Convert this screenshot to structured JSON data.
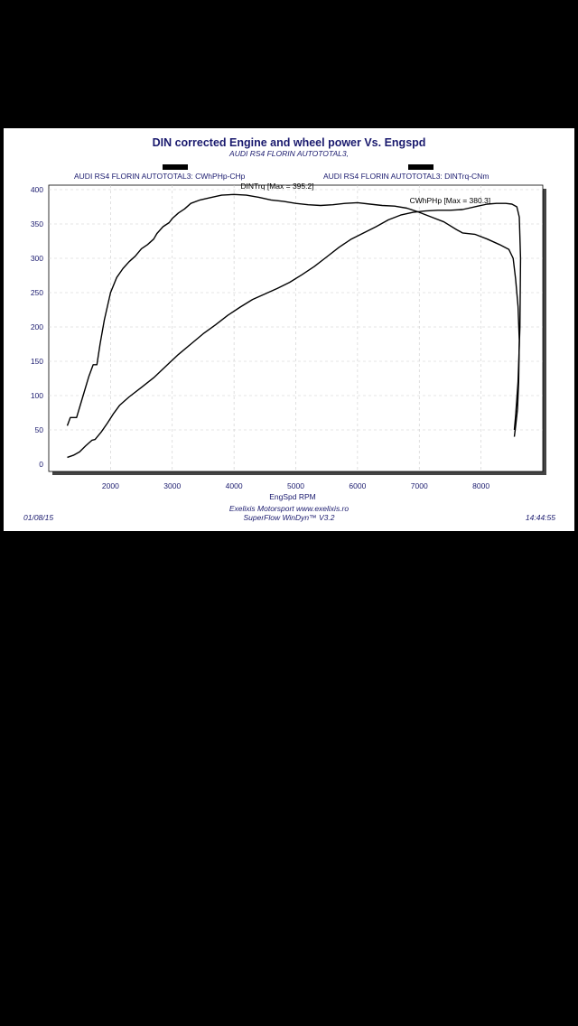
{
  "chart_data": {
    "type": "line",
    "title": "DIN corrected Engine and wheel power Vs. Engspd",
    "subtitle": "AUDI RS4 FLORIN AUTOTOTAL3,",
    "legend": [
      "AUDI RS4 FLORIN AUTOTOTAL3: CWhPHp-CHp",
      "AUDI RS4 FLORIN AUTOTOTAL3: DINTrq-CNm"
    ],
    "xlabel": "EngSpd RPM",
    "ylabel": "",
    "xlim": [
      1000,
      9000
    ],
    "ylim": [
      0,
      400
    ],
    "x_ticks": [
      "2000",
      "3000",
      "4000",
      "5000",
      "6000",
      "7000",
      "8000"
    ],
    "y_ticks": [
      "0",
      "50",
      "100",
      "150",
      "200",
      "250",
      "300",
      "350",
      "400"
    ],
    "grid": true,
    "annotations": [
      {
        "text": "DINTrq [Max = 395.2]",
        "x": 4700,
        "y": 401
      },
      {
        "text": "CWhPHp [Max = 380.3]",
        "x": 7500,
        "y": 380
      }
    ],
    "series": [
      {
        "name": "DINTrq",
        "points": [
          [
            1300,
            56
          ],
          [
            1350,
            68
          ],
          [
            1450,
            68
          ],
          [
            1550,
            98
          ],
          [
            1650,
            128
          ],
          [
            1720,
            145
          ],
          [
            1780,
            145
          ],
          [
            1830,
            175
          ],
          [
            1900,
            210
          ],
          [
            2000,
            250
          ],
          [
            2100,
            272
          ],
          [
            2200,
            285
          ],
          [
            2300,
            295
          ],
          [
            2400,
            303
          ],
          [
            2500,
            314
          ],
          [
            2600,
            320
          ],
          [
            2700,
            328
          ],
          [
            2750,
            336
          ],
          [
            2850,
            346
          ],
          [
            2950,
            352
          ],
          [
            3000,
            358
          ],
          [
            3100,
            366
          ],
          [
            3200,
            372
          ],
          [
            3300,
            380
          ],
          [
            3450,
            385
          ],
          [
            3600,
            388
          ],
          [
            3800,
            392
          ],
          [
            4000,
            393
          ],
          [
            4200,
            392
          ],
          [
            4400,
            389
          ],
          [
            4600,
            385
          ],
          [
            4800,
            383
          ],
          [
            5000,
            380
          ],
          [
            5200,
            378
          ],
          [
            5400,
            377
          ],
          [
            5600,
            378
          ],
          [
            5800,
            380
          ],
          [
            6000,
            381
          ],
          [
            6200,
            379
          ],
          [
            6400,
            377
          ],
          [
            6600,
            376
          ],
          [
            6800,
            373
          ],
          [
            7000,
            367
          ],
          [
            7200,
            360
          ],
          [
            7400,
            353
          ],
          [
            7600,
            342
          ],
          [
            7700,
            337
          ],
          [
            7900,
            335
          ],
          [
            8100,
            328
          ],
          [
            8300,
            320
          ],
          [
            8450,
            313
          ],
          [
            8520,
            300
          ],
          [
            8560,
            270
          ],
          [
            8600,
            230
          ],
          [
            8620,
            180
          ],
          [
            8610,
            120
          ],
          [
            8590,
            80
          ],
          [
            8560,
            55
          ],
          [
            8540,
            40
          ]
        ]
      },
      {
        "name": "CWhPHp",
        "points": [
          [
            1300,
            10
          ],
          [
            1400,
            13
          ],
          [
            1500,
            18
          ],
          [
            1600,
            27
          ],
          [
            1700,
            35
          ],
          [
            1750,
            36
          ],
          [
            1850,
            47
          ],
          [
            1950,
            60
          ],
          [
            2050,
            74
          ],
          [
            2150,
            86
          ],
          [
            2300,
            98
          ],
          [
            2500,
            112
          ],
          [
            2700,
            126
          ],
          [
            2900,
            143
          ],
          [
            3100,
            160
          ],
          [
            3300,
            175
          ],
          [
            3500,
            190
          ],
          [
            3700,
            203
          ],
          [
            3900,
            217
          ],
          [
            4100,
            229
          ],
          [
            4300,
            240
          ],
          [
            4500,
            248
          ],
          [
            4700,
            256
          ],
          [
            4900,
            265
          ],
          [
            5100,
            276
          ],
          [
            5300,
            288
          ],
          [
            5500,
            302
          ],
          [
            5700,
            316
          ],
          [
            5900,
            328
          ],
          [
            6100,
            337
          ],
          [
            6300,
            346
          ],
          [
            6500,
            356
          ],
          [
            6700,
            363
          ],
          [
            6900,
            367
          ],
          [
            7100,
            369
          ],
          [
            7300,
            370
          ],
          [
            7500,
            370
          ],
          [
            7700,
            371
          ],
          [
            7800,
            373
          ],
          [
            7950,
            376
          ],
          [
            8100,
            379
          ],
          [
            8250,
            380
          ],
          [
            8400,
            380
          ],
          [
            8500,
            379
          ],
          [
            8580,
            375
          ],
          [
            8620,
            360
          ],
          [
            8640,
            300
          ],
          [
            8630,
            200
          ],
          [
            8600,
            120
          ],
          [
            8560,
            70
          ],
          [
            8540,
            50
          ]
        ]
      }
    ]
  },
  "footer": {
    "date": "01/08/15",
    "time": "14:44:55",
    "credit_1": "Exelixis Motorsport www.exelixis.ro",
    "credit_2": "SuperFlow WinDyn™ V3.2"
  },
  "colors": {
    "text": "#1a1a6e",
    "line": "#000000",
    "grid": "#cccccc"
  }
}
